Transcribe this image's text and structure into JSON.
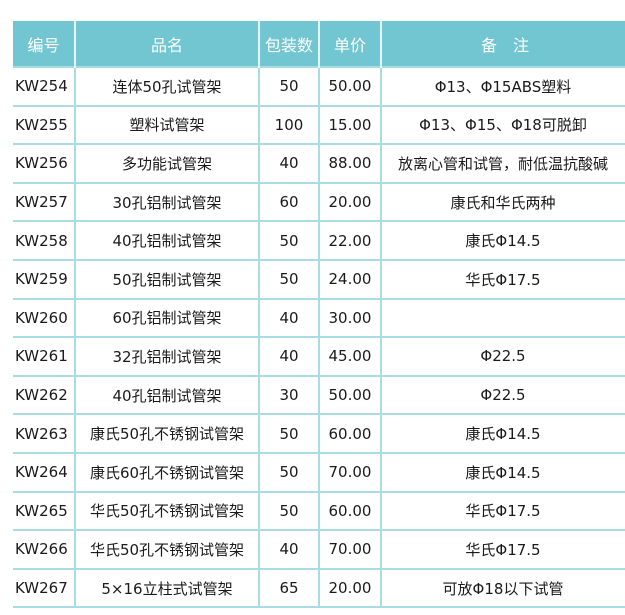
{
  "header": {
    "code": "编号",
    "name": "品名",
    "pack": "包装数",
    "price": "单价",
    "note": "备　注"
  },
  "colors": {
    "header_bg": "#72c6d1",
    "grid_line": "#a9dde3"
  },
  "rows": [
    {
      "code": "KW254",
      "name": "连体50孔试管架",
      "pack": "50",
      "price": "50.00",
      "note": "Φ13、Φ15ABS塑料"
    },
    {
      "code": "KW255",
      "name": "塑料试管架",
      "pack": "100",
      "price": "15.00",
      "note": "Φ13、Φ15、Φ18可脱卸"
    },
    {
      "code": "KW256",
      "name": "多功能试管架",
      "pack": "40",
      "price": "88.00",
      "note": "放离心管和试管，耐低温抗酸碱"
    },
    {
      "code": "KW257",
      "name": "30孔铝制试管架",
      "pack": "60",
      "price": "20.00",
      "note": "康氏和华氏两种"
    },
    {
      "code": "KW258",
      "name": "40孔铝制试管架",
      "pack": "50",
      "price": "22.00",
      "note": "康氏Φ14.5"
    },
    {
      "code": "KW259",
      "name": "50孔铝制试管架",
      "pack": "50",
      "price": "24.00",
      "note": "华氏Φ17.5"
    },
    {
      "code": "KW260",
      "name": "60孔铝制试管架",
      "pack": "40",
      "price": "30.00",
      "note": ""
    },
    {
      "code": "KW261",
      "name": "32孔铝制试管架",
      "pack": "40",
      "price": "45.00",
      "note": "Φ22.5"
    },
    {
      "code": "KW262",
      "name": "40孔铝制试管架",
      "pack": "30",
      "price": "50.00",
      "note": "Φ22.5"
    },
    {
      "code": "KW263",
      "name": "康氏50孔不锈钢试管架",
      "pack": "50",
      "price": "60.00",
      "note": "康氏Φ14.5"
    },
    {
      "code": "KW264",
      "name": "康氏60孔不锈钢试管架",
      "pack": "50",
      "price": "70.00",
      "note": "康氏Φ14.5"
    },
    {
      "code": "KW265",
      "name": "华氏50孔不锈钢试管架",
      "pack": "50",
      "price": "60.00",
      "note": "华氏Φ17.5"
    },
    {
      "code": "KW266",
      "name": "华氏50孔不锈钢试管架",
      "pack": "40",
      "price": "70.00",
      "note": "华氏Φ17.5"
    },
    {
      "code": "KW267",
      "name": "5×16立柱式试管架",
      "pack": "65",
      "price": "20.00",
      "note": "可放Φ18以下试管"
    }
  ]
}
